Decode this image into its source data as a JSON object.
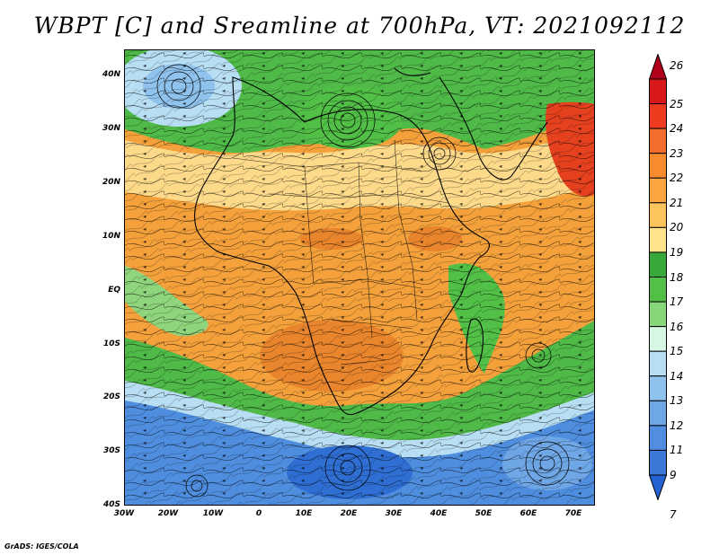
{
  "title": "WBPT [C] and Sreamline at 700hPa, VT: 2021092112",
  "credit": "GrADS: IGES/COLA",
  "latitude_labels": [
    "40N",
    "30N",
    "20N",
    "10N",
    "EQ",
    "10S",
    "20S",
    "30S",
    "40S"
  ],
  "longitude_labels": [
    "30W",
    "20W",
    "10W",
    "0",
    "10E",
    "20E",
    "30E",
    "40E",
    "50E",
    "60E",
    "70E"
  ],
  "colorbar": {
    "labels": [
      "26",
      "25",
      "24",
      "23",
      "22",
      "21",
      "20",
      "19",
      "18",
      "17",
      "16",
      "15",
      "14",
      "13",
      "12",
      "11",
      "9",
      "7"
    ],
    "colors": [
      "#b0001a",
      "#d7191c",
      "#ee3a1e",
      "#f46d2b",
      "#f98b2f",
      "#fba63e",
      "#fdc45e",
      "#ffe48c",
      "#38a83a",
      "#52c047",
      "#88d67a",
      "#d7f6e4",
      "#b8def3",
      "#8fc2ec",
      "#6fa6e6",
      "#528ee0",
      "#3a79d8",
      "#2563d0"
    ]
  },
  "map_colors": {
    "ocean_south": "#4f8edf",
    "cool_band": "#b8def3",
    "green": "#4fba48",
    "light_green": "#8fd57d",
    "tan": "#fdd98a",
    "orange": "#f4a13c",
    "dark_orange": "#e9852c",
    "red": "#e5411f"
  }
}
